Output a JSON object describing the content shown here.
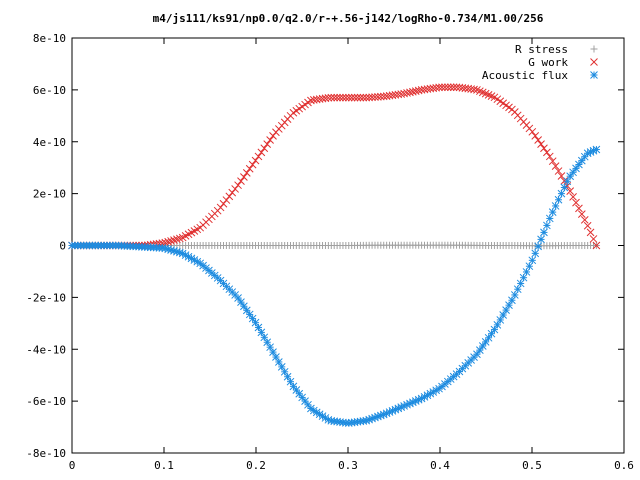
{
  "chart_data": {
    "type": "scatter",
    "title": "m4/js111/ks91/np0.0/q2.0/r-+.56-j142/logRho-0.734/M1.00/256",
    "xlabel": "",
    "ylabel": "",
    "xlim": [
      0,
      0.6
    ],
    "ylim": [
      -8e-10,
      8e-10
    ],
    "grid": false,
    "legend_position": "top-right",
    "x_ticks": [
      {
        "value": 0,
        "label": "0"
      },
      {
        "value": 0.1,
        "label": "0.1"
      },
      {
        "value": 0.2,
        "label": "0.2"
      },
      {
        "value": 0.3,
        "label": "0.3"
      },
      {
        "value": 0.4,
        "label": "0.4"
      },
      {
        "value": 0.5,
        "label": "0.5"
      },
      {
        "value": 0.6,
        "label": "0.6"
      }
    ],
    "y_ticks": [
      {
        "value": 8e-10,
        "label": "8e-10"
      },
      {
        "value": 6e-10,
        "label": "6e-10"
      },
      {
        "value": 4e-10,
        "label": "4e-10"
      },
      {
        "value": 2e-10,
        "label": "2e-10"
      },
      {
        "value": 0,
        "label": "0"
      },
      {
        "value": -2e-10,
        "label": "-2e-10"
      },
      {
        "value": -4e-10,
        "label": "-4e-10"
      },
      {
        "value": -6e-10,
        "label": "-6e-10"
      },
      {
        "value": -8e-10,
        "label": "-8e-10"
      }
    ],
    "series": [
      {
        "name": "R stress",
        "marker": "plus",
        "color": "#a0a0a0",
        "x": [
          0,
          0.05,
          0.1,
          0.15,
          0.2,
          0.25,
          0.3,
          0.33,
          0.36,
          0.39,
          0.42,
          0.45,
          0.48,
          0.51,
          0.54,
          0.57
        ],
        "y": [
          0,
          0,
          0,
          0,
          0,
          0,
          0,
          1e-12,
          1e-12,
          1e-12,
          1e-12,
          0,
          0,
          -1e-12,
          0,
          0
        ]
      },
      {
        "name": "G work",
        "marker": "x",
        "color": "#e03030",
        "x": [
          0,
          0.05,
          0.08,
          0.1,
          0.12,
          0.14,
          0.16,
          0.18,
          0.2,
          0.22,
          0.24,
          0.26,
          0.28,
          0.3,
          0.32,
          0.34,
          0.36,
          0.38,
          0.4,
          0.42,
          0.44,
          0.46,
          0.48,
          0.5,
          0.52,
          0.54,
          0.56,
          0.57
        ],
        "y": [
          0,
          0,
          0,
          1e-11,
          3e-11,
          7e-11,
          1.4e-10,
          2.3e-10,
          3.3e-10,
          4.3e-10,
          5.1e-10,
          5.6e-10,
          5.7e-10,
          5.7e-10,
          5.7e-10,
          5.75e-10,
          5.85e-10,
          6e-10,
          6.1e-10,
          6.1e-10,
          6e-10,
          5.7e-10,
          5.2e-10,
          4.4e-10,
          3.4e-10,
          2.2e-10,
          8e-11,
          0
        ]
      },
      {
        "name": "Acoustic flux",
        "marker": "star",
        "color": "#1e8ce0",
        "x": [
          0,
          0.05,
          0.1,
          0.12,
          0.14,
          0.16,
          0.18,
          0.2,
          0.22,
          0.24,
          0.26,
          0.28,
          0.3,
          0.32,
          0.34,
          0.36,
          0.38,
          0.4,
          0.42,
          0.44,
          0.46,
          0.48,
          0.5,
          0.52,
          0.54,
          0.56,
          0.57
        ],
        "y": [
          0,
          0,
          -1e-11,
          -3e-11,
          -7e-11,
          -1.3e-10,
          -2e-10,
          -3e-10,
          -4.2e-10,
          -5.4e-10,
          -6.3e-10,
          -6.75e-10,
          -6.85e-10,
          -6.75e-10,
          -6.5e-10,
          -6.2e-10,
          -5.9e-10,
          -5.5e-10,
          -4.9e-10,
          -4.2e-10,
          -3.2e-10,
          -2e-10,
          -6e-11,
          1.1e-10,
          2.6e-10,
          3.55e-10,
          3.7e-10
        ]
      }
    ]
  }
}
